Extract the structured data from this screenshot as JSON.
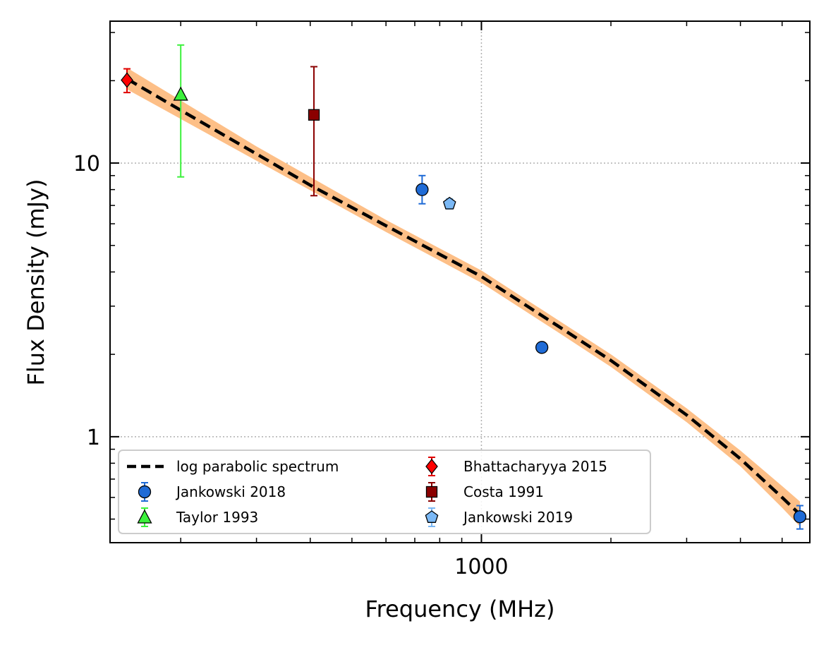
{
  "chart_data": {
    "type": "scatter",
    "xlabel": "Frequency (MHz)",
    "ylabel": "Flux Density (mJy)",
    "xscale": "log",
    "yscale": "log",
    "xlim": [
      137,
      5800
    ],
    "ylim": [
      0.41,
      33
    ],
    "x_ticks": [
      {
        "value": 1000,
        "label": "1000"
      }
    ],
    "y_ticks": [
      {
        "value": 1,
        "label": "1"
      },
      {
        "value": 10,
        "label": "10"
      }
    ],
    "grid": true,
    "legend": {
      "placement": "lower-left",
      "columns": 2
    },
    "model": {
      "name": "log parabolic spectrum",
      "color": "#000000",
      "band_color": "#fdbf87",
      "curve": [
        {
          "x": 150,
          "y": 20.3
        },
        {
          "x": 200,
          "y": 15.6
        },
        {
          "x": 300,
          "y": 10.8
        },
        {
          "x": 400,
          "y": 8.3
        },
        {
          "x": 600,
          "y": 5.9
        },
        {
          "x": 1000,
          "y": 3.85
        },
        {
          "x": 1500,
          "y": 2.55
        },
        {
          "x": 2000,
          "y": 1.9
        },
        {
          "x": 3000,
          "y": 1.2
        },
        {
          "x": 4000,
          "y": 0.83
        },
        {
          "x": 5000,
          "y": 0.6
        },
        {
          "x": 5500,
          "y": 0.52
        }
      ],
      "band": [
        {
          "x": 150,
          "lo": 18.6,
          "hi": 22.3
        },
        {
          "x": 300,
          "lo": 10.2,
          "hi": 11.5
        },
        {
          "x": 600,
          "lo": 5.6,
          "hi": 6.2
        },
        {
          "x": 1000,
          "lo": 3.65,
          "hi": 4.05
        },
        {
          "x": 1500,
          "lo": 2.42,
          "hi": 2.68
        },
        {
          "x": 2000,
          "lo": 1.8,
          "hi": 2.0
        },
        {
          "x": 3000,
          "lo": 1.13,
          "hi": 1.27
        },
        {
          "x": 4000,
          "lo": 0.78,
          "hi": 0.89
        },
        {
          "x": 5000,
          "lo": 0.55,
          "hi": 0.66
        },
        {
          "x": 5500,
          "lo": 0.47,
          "hi": 0.58
        }
      ]
    },
    "series": [
      {
        "name": "Jankowski 2018",
        "marker": "circle",
        "color": "#1f6bd6",
        "err_color": "#1f6bd6",
        "points": [
          {
            "x": 728,
            "y": 8.0,
            "lo": 7.1,
            "hi": 9.0
          },
          {
            "x": 1382,
            "y": 2.12,
            "lo": 2.05,
            "hi": 2.2
          },
          {
            "x": 5500,
            "y": 0.51,
            "lo": 0.46,
            "hi": 0.56
          }
        ]
      },
      {
        "name": "Taylor 1993",
        "marker": "triangle",
        "color": "#3cf13c",
        "err_color": "#3cf13c",
        "points": [
          {
            "x": 200,
            "y": 17.8,
            "lo": 8.9,
            "hi": 27.0
          }
        ]
      },
      {
        "name": "Bhattacharyya 2015",
        "marker": "diamond",
        "color": "#ff0000",
        "err_color": "#e00000",
        "points": [
          {
            "x": 150,
            "y": 20.1,
            "lo": 18.1,
            "hi": 22.1
          }
        ]
      },
      {
        "name": "Costa 1991",
        "marker": "square",
        "color": "#8b0000",
        "err_color": "#8b0000",
        "points": [
          {
            "x": 408,
            "y": 15.0,
            "lo": 7.6,
            "hi": 22.5
          }
        ]
      },
      {
        "name": "Jankowski 2019",
        "marker": "pentagon",
        "color": "#7ab8f5",
        "err_color": "#7ab8f5",
        "points": [
          {
            "x": 843,
            "y": 7.1,
            "lo": 6.8,
            "hi": 7.4
          }
        ]
      }
    ]
  }
}
